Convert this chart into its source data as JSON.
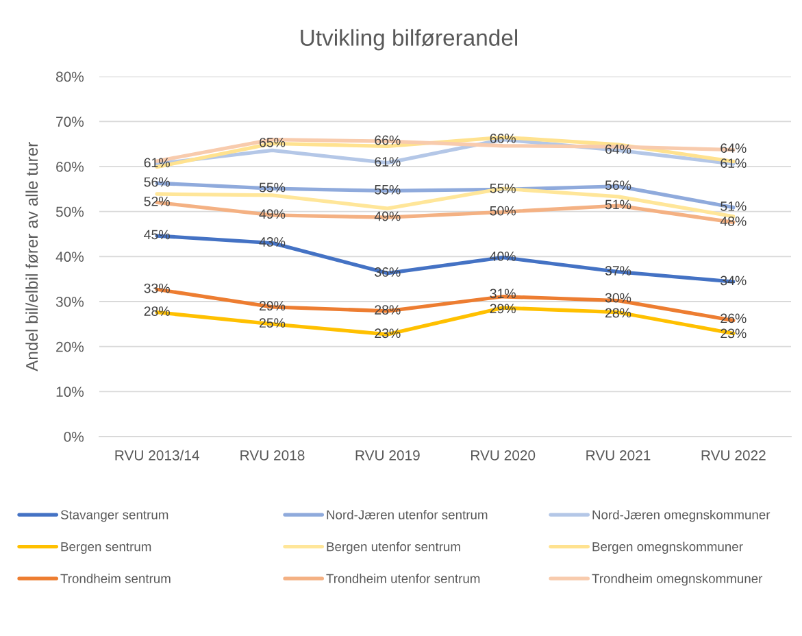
{
  "chart_data": {
    "type": "line",
    "title": "Utvikling bilførerandel",
    "ylabel": "Andel bil/elbil fører av alle turer",
    "categories": [
      "RVU 2013/14",
      "RVU 2018",
      "RVU 2019",
      "RVU 2020",
      "RVU 2021",
      "RVU 2022"
    ],
    "ylim": [
      0,
      80
    ],
    "yticks": [
      {
        "value": 0,
        "label": "0%"
      },
      {
        "value": 10,
        "label": "10%"
      },
      {
        "value": 20,
        "label": "20%"
      },
      {
        "value": 30,
        "label": "30%"
      },
      {
        "value": 40,
        "label": "40%"
      },
      {
        "value": 50,
        "label": "50%"
      },
      {
        "value": 60,
        "label": "60%"
      },
      {
        "value": 70,
        "label": "70%"
      },
      {
        "value": 80,
        "label": "80%"
      }
    ],
    "grid": "y",
    "legend": "bottom",
    "marker": "none",
    "line_style": "solid",
    "series": [
      {
        "name": "Stavanger sentrum",
        "color": "#4472c4",
        "values": [
          44.6,
          43.0,
          36.3,
          39.8,
          36.6,
          34.4
        ],
        "value_labels": [
          "45%",
          "43%",
          "36%",
          "40%",
          "37%",
          "34%"
        ]
      },
      {
        "name": "Nord-Jæren utenfor sentrum",
        "color": "#8faadc",
        "values": [
          56.3,
          55.1,
          54.6,
          54.9,
          55.6,
          50.9
        ],
        "value_labels": [
          "56%",
          "55%",
          "55%",
          "55%",
          "56%",
          "51%"
        ]
      },
      {
        "name": "Nord-Jæren omegnskommuner",
        "color": "#b4c7e7",
        "values": [
          60.6,
          63.6,
          60.8,
          66.0,
          63.6,
          60.6
        ],
        "value_labels": [
          "61%",
          null,
          "61%",
          "66%",
          "64%",
          "61%"
        ]
      },
      {
        "name": "Bergen sentrum",
        "color": "#ffc000",
        "values": [
          27.6,
          25.0,
          22.7,
          28.6,
          27.6,
          22.9
        ],
        "value_labels": [
          "28%",
          "25%",
          "23%",
          "29%",
          "28%",
          "23%"
        ]
      },
      {
        "name": "Bergen utenfor sentrum",
        "color": "#ffe699",
        "values": [
          53.9,
          53.6,
          50.7,
          55.1,
          53.3,
          48.9
        ]
      },
      {
        "name": "Bergen omegnskommuner",
        "color": "#ffe28f",
        "values": [
          59.9,
          65.1,
          64.5,
          66.5,
          64.9,
          61.1
        ],
        "value_labels": [
          null,
          "65%",
          null,
          null,
          null,
          null
        ]
      },
      {
        "name": "Trondheim sentrum",
        "color": "#ed7d31",
        "values": [
          32.7,
          28.8,
          27.9,
          31.1,
          30.2,
          25.8
        ],
        "value_labels": [
          "33%",
          "29%",
          "28%",
          "31%",
          "30%",
          "26%"
        ]
      },
      {
        "name": "Trondheim utenfor sentrum",
        "color": "#f4b183",
        "values": [
          52.0,
          49.2,
          48.7,
          49.9,
          51.3,
          47.6
        ],
        "value_labels": [
          "52%",
          "49%",
          "49%",
          "50%",
          "51%",
          "48%"
        ]
      },
      {
        "name": "Trondheim omegnskommuner",
        "color": "#f8cbad",
        "values": [
          61.2,
          66.0,
          65.6,
          64.6,
          64.4,
          63.7
        ],
        "value_labels": [
          null,
          null,
          "66%",
          null,
          null,
          "64%"
        ]
      }
    ]
  }
}
